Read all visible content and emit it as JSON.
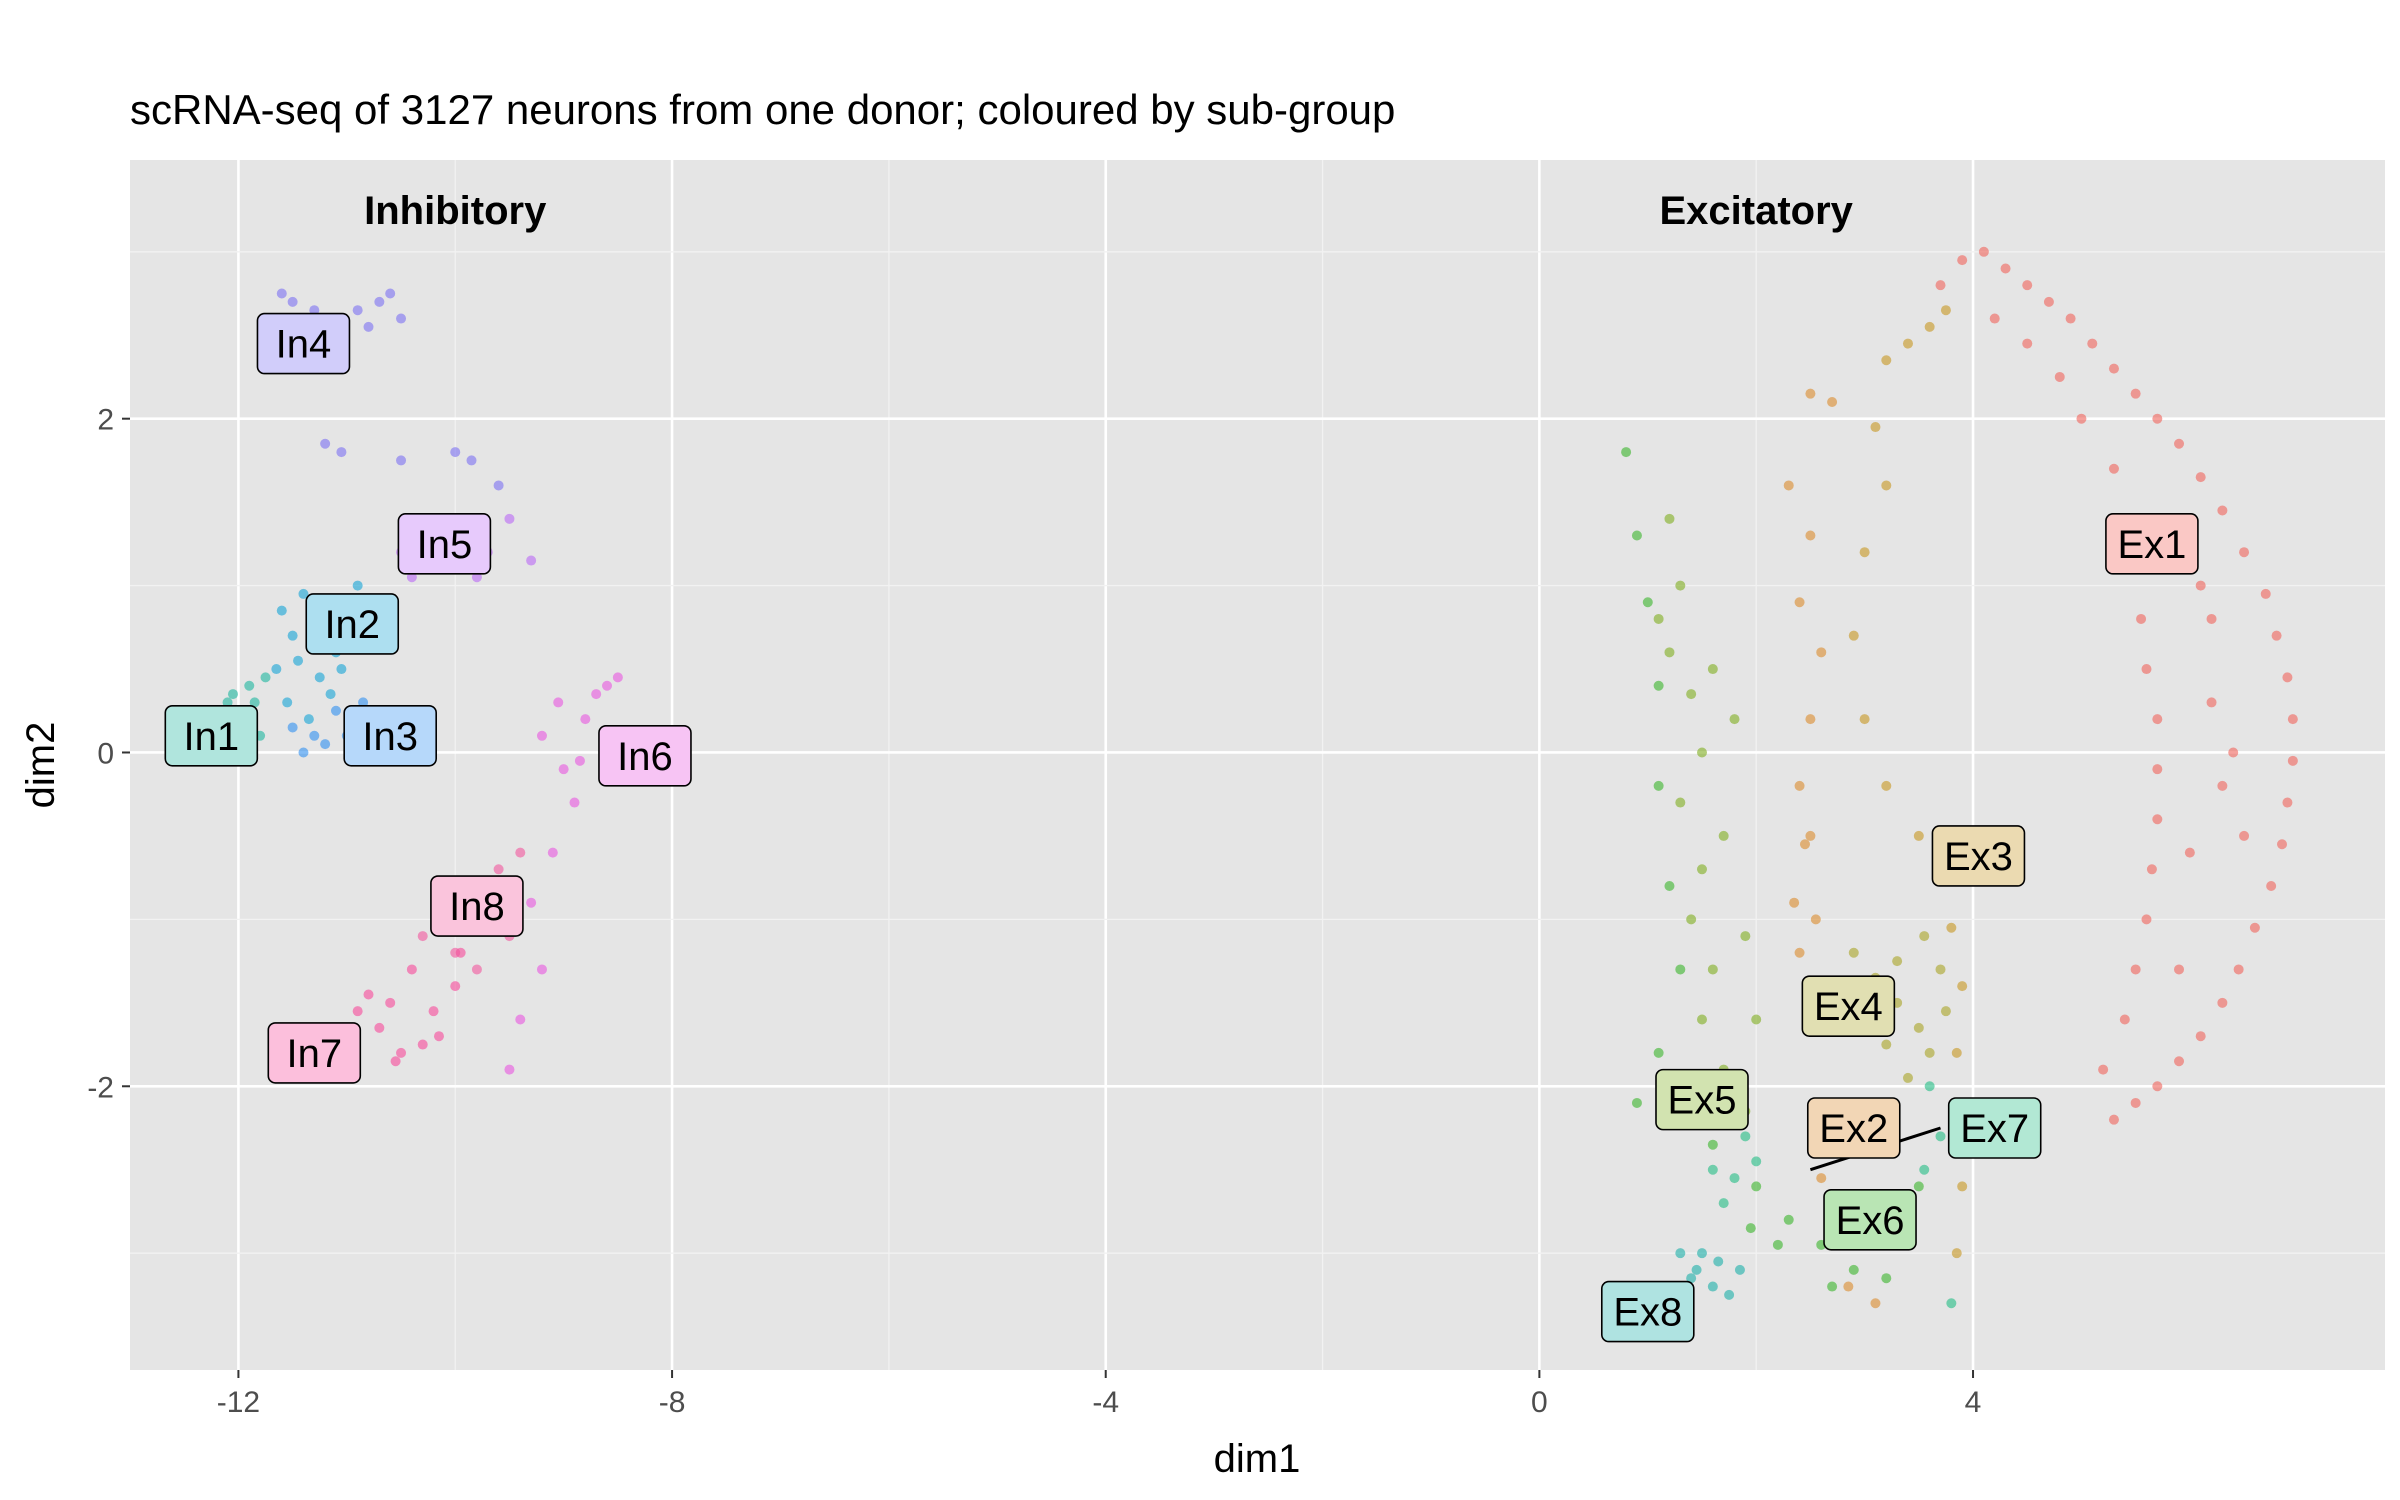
{
  "chart_data": {
    "type": "scatter",
    "title": "scRNA-seq of 3127 neurons from one donor; coloured by sub-group",
    "xlabel": "dim1",
    "ylabel": "dim2",
    "xlim": [
      -13,
      7.8
    ],
    "ylim": [
      -3.7,
      3.55
    ],
    "xticks": [
      -12,
      -8,
      -4,
      0,
      4
    ],
    "xtick_labels": [
      "-12",
      "-8",
      "-4",
      "0",
      "4"
    ],
    "yticks": [
      -2,
      0,
      2
    ],
    "ytick_labels": [
      "-2",
      "0",
      "2"
    ],
    "annotations": [
      {
        "text": "Inhibitory",
        "x": -10,
        "y": 3.25
      },
      {
        "text": "Excitatory",
        "x": 2,
        "y": 3.25
      }
    ],
    "grid": true,
    "legend": "none",
    "series": [
      {
        "name": "In1",
        "color": "#1CB59F",
        "points": [
          [
            -12.15,
            0.25
          ],
          [
            -12.05,
            0.35
          ],
          [
            -11.95,
            0.15
          ],
          [
            -11.9,
            0.4
          ],
          [
            -11.85,
            0.3
          ],
          [
            -11.8,
            0.1
          ],
          [
            -12.0,
            0.05
          ],
          [
            -11.75,
            0.45
          ],
          [
            -11.9,
            0.2
          ],
          [
            -12.1,
            0.3
          ]
        ]
      },
      {
        "name": "In2",
        "color": "#14A4D5",
        "points": [
          [
            -11.6,
            0.85
          ],
          [
            -11.5,
            0.7
          ],
          [
            -11.4,
            0.95
          ],
          [
            -11.3,
            0.75
          ],
          [
            -11.2,
            0.9
          ],
          [
            -11.1,
            0.6
          ],
          [
            -11.0,
            0.8
          ],
          [
            -10.9,
            1.0
          ],
          [
            -11.45,
            0.55
          ],
          [
            -11.25,
            0.45
          ],
          [
            -11.55,
            0.3
          ],
          [
            -11.15,
            0.35
          ],
          [
            -11.35,
            0.2
          ],
          [
            -11.05,
            0.5
          ],
          [
            -10.8,
            0.65
          ],
          [
            -11.65,
            0.5
          ]
        ]
      },
      {
        "name": "In3",
        "color": "#2F90F0",
        "points": [
          [
            -11.3,
            0.1
          ],
          [
            -11.1,
            0.25
          ],
          [
            -11.2,
            0.05
          ],
          [
            -10.95,
            0.2
          ],
          [
            -11.4,
            0.0
          ],
          [
            -11.0,
            0.1
          ],
          [
            -10.85,
            0.3
          ],
          [
            -11.5,
            0.15
          ]
        ]
      },
      {
        "name": "In4",
        "color": "#7B6FF2",
        "points": [
          [
            -11.5,
            2.7
          ],
          [
            -11.3,
            2.65
          ],
          [
            -11.1,
            2.6
          ],
          [
            -10.9,
            2.65
          ],
          [
            -10.7,
            2.7
          ],
          [
            -10.5,
            2.6
          ],
          [
            -11.4,
            2.55
          ],
          [
            -10.8,
            2.55
          ],
          [
            -11.2,
            1.85
          ],
          [
            -11.05,
            1.8
          ],
          [
            -10.5,
            1.75
          ],
          [
            -10.0,
            1.8
          ],
          [
            -9.85,
            1.75
          ],
          [
            -9.6,
            1.6
          ],
          [
            -11.6,
            2.75
          ],
          [
            -10.6,
            2.75
          ]
        ]
      },
      {
        "name": "In5",
        "color": "#B968F5",
        "points": [
          [
            -10.5,
            1.2
          ],
          [
            -10.35,
            1.3
          ],
          [
            -10.2,
            1.15
          ],
          [
            -10.05,
            1.25
          ],
          [
            -9.9,
            1.35
          ],
          [
            -9.7,
            1.2
          ],
          [
            -9.5,
            1.4
          ],
          [
            -9.3,
            1.15
          ],
          [
            -10.4,
            1.05
          ],
          [
            -9.8,
            1.05
          ]
        ]
      },
      {
        "name": "In6",
        "color": "#E755E0",
        "points": [
          [
            -9.2,
            0.1
          ],
          [
            -9.0,
            -0.1
          ],
          [
            -8.8,
            0.2
          ],
          [
            -8.7,
            0.35
          ],
          [
            -8.5,
            0.45
          ],
          [
            -8.9,
            -0.3
          ],
          [
            -9.1,
            -0.6
          ],
          [
            -9.3,
            -0.9
          ],
          [
            -9.2,
            -1.3
          ],
          [
            -9.4,
            -1.6
          ],
          [
            -9.5,
            -1.9
          ],
          [
            -8.85,
            -0.05
          ],
          [
            -9.05,
            0.3
          ],
          [
            -8.6,
            0.4
          ]
        ]
      },
      {
        "name": "In7",
        "color": "#F7479A",
        "points": [
          [
            -10.9,
            -1.55
          ],
          [
            -10.7,
            -1.65
          ],
          [
            -10.5,
            -1.8
          ],
          [
            -10.3,
            -1.75
          ],
          [
            -10.6,
            -1.5
          ],
          [
            -10.2,
            -1.55
          ],
          [
            -10.0,
            -1.4
          ],
          [
            -10.4,
            -1.3
          ],
          [
            -10.8,
            -1.45
          ],
          [
            -10.55,
            -1.85
          ],
          [
            -10.15,
            -1.7
          ],
          [
            -9.95,
            -1.2
          ]
        ]
      },
      {
        "name": "In8",
        "color": "#F2559C",
        "points": [
          [
            -10.3,
            -1.1
          ],
          [
            -10.1,
            -0.9
          ],
          [
            -9.9,
            -0.95
          ],
          [
            -9.7,
            -1.0
          ],
          [
            -9.5,
            -1.1
          ],
          [
            -9.8,
            -1.3
          ],
          [
            -10.0,
            -1.2
          ],
          [
            -9.6,
            -0.7
          ],
          [
            -9.4,
            -0.6
          ],
          [
            -9.75,
            -0.85
          ]
        ]
      },
      {
        "name": "Ex1",
        "color": "#F0625A",
        "points": [
          [
            3.7,
            2.8
          ],
          [
            3.9,
            2.95
          ],
          [
            4.1,
            3.0
          ],
          [
            4.3,
            2.9
          ],
          [
            4.5,
            2.8
          ],
          [
            4.7,
            2.7
          ],
          [
            4.9,
            2.6
          ],
          [
            5.1,
            2.45
          ],
          [
            5.3,
            2.3
          ],
          [
            5.5,
            2.15
          ],
          [
            5.7,
            2.0
          ],
          [
            5.9,
            1.85
          ],
          [
            6.1,
            1.65
          ],
          [
            6.3,
            1.45
          ],
          [
            6.5,
            1.2
          ],
          [
            6.7,
            0.95
          ],
          [
            6.8,
            0.7
          ],
          [
            6.9,
            0.45
          ],
          [
            6.95,
            0.2
          ],
          [
            6.95,
            -0.05
          ],
          [
            6.9,
            -0.3
          ],
          [
            6.85,
            -0.55
          ],
          [
            6.75,
            -0.8
          ],
          [
            6.6,
            -1.05
          ],
          [
            6.45,
            -1.3
          ],
          [
            6.3,
            -1.5
          ],
          [
            6.1,
            -1.7
          ],
          [
            5.9,
            -1.85
          ],
          [
            5.7,
            -2.0
          ],
          [
            5.5,
            -2.1
          ],
          [
            5.3,
            -2.2
          ],
          [
            5.2,
            -1.9
          ],
          [
            5.4,
            -1.6
          ],
          [
            5.5,
            -1.3
          ],
          [
            5.6,
            -1.0
          ],
          [
            5.65,
            -0.7
          ],
          [
            5.7,
            -0.4
          ],
          [
            5.7,
            -0.1
          ],
          [
            5.7,
            0.2
          ],
          [
            5.6,
            0.5
          ],
          [
            5.55,
            0.8
          ],
          [
            5.5,
            1.1
          ],
          [
            5.4,
            1.4
          ],
          [
            5.3,
            1.7
          ],
          [
            5.0,
            2.0
          ],
          [
            4.8,
            2.25
          ],
          [
            4.5,
            2.45
          ],
          [
            4.2,
            2.6
          ],
          [
            6.2,
            0.3
          ],
          [
            6.3,
            -0.2
          ],
          [
            6.0,
            -0.6
          ],
          [
            6.2,
            0.8
          ],
          [
            6.4,
            0.0
          ],
          [
            6.1,
            1.0
          ],
          [
            5.9,
            -1.3
          ],
          [
            6.5,
            -0.5
          ]
        ]
      },
      {
        "name": "Ex2",
        "color": "#DA8A2B",
        "points": [
          [
            2.5,
            2.15
          ],
          [
            2.7,
            2.1
          ],
          [
            2.3,
            1.6
          ],
          [
            2.5,
            1.3
          ],
          [
            2.4,
            0.9
          ],
          [
            2.6,
            0.6
          ],
          [
            2.5,
            0.2
          ],
          [
            2.4,
            -0.2
          ],
          [
            2.45,
            -0.55
          ],
          [
            2.35,
            -0.9
          ],
          [
            2.4,
            -1.2
          ],
          [
            2.55,
            -1.0
          ],
          [
            2.5,
            -0.5
          ],
          [
            2.6,
            -2.55
          ],
          [
            2.8,
            -2.7
          ],
          [
            3.0,
            -2.85
          ],
          [
            2.85,
            -3.2
          ],
          [
            3.1,
            -3.3
          ],
          [
            2.6,
            -2.3
          ]
        ]
      },
      {
        "name": "Ex3",
        "color": "#C6961F",
        "points": [
          [
            3.2,
            2.35
          ],
          [
            3.4,
            2.45
          ],
          [
            3.6,
            2.55
          ],
          [
            3.75,
            2.65
          ],
          [
            3.1,
            1.95
          ],
          [
            3.2,
            1.6
          ],
          [
            3.0,
            1.2
          ],
          [
            2.9,
            0.7
          ],
          [
            3.0,
            0.2
          ],
          [
            3.2,
            -0.2
          ],
          [
            3.5,
            -0.5
          ],
          [
            3.7,
            -0.75
          ],
          [
            3.8,
            -1.05
          ],
          [
            3.9,
            -1.4
          ],
          [
            3.85,
            -1.8
          ],
          [
            3.95,
            -2.2
          ],
          [
            3.9,
            -2.6
          ],
          [
            3.85,
            -3.0
          ]
        ]
      },
      {
        "name": "Ex4",
        "color": "#A9A324",
        "points": [
          [
            2.9,
            -1.2
          ],
          [
            3.1,
            -1.35
          ],
          [
            3.3,
            -1.5
          ],
          [
            3.5,
            -1.65
          ],
          [
            3.7,
            -1.3
          ],
          [
            3.6,
            -1.8
          ],
          [
            3.4,
            -1.95
          ],
          [
            3.2,
            -1.75
          ],
          [
            3.0,
            -1.55
          ],
          [
            3.75,
            -1.55
          ],
          [
            3.55,
            -1.1
          ],
          [
            3.3,
            -1.25
          ]
        ]
      },
      {
        "name": "Ex5",
        "color": "#7EAE1E",
        "points": [
          [
            1.2,
            1.4
          ],
          [
            1.3,
            1.0
          ],
          [
            1.2,
            0.6
          ],
          [
            1.4,
            0.35
          ],
          [
            1.5,
            0.0
          ],
          [
            1.3,
            -0.3
          ],
          [
            1.5,
            -0.7
          ],
          [
            1.4,
            -1.0
          ],
          [
            1.6,
            -1.3
          ],
          [
            1.5,
            -1.6
          ],
          [
            1.7,
            -1.9
          ],
          [
            1.9,
            -2.15
          ],
          [
            1.1,
            0.8
          ],
          [
            1.6,
            0.5
          ],
          [
            1.8,
            0.2
          ],
          [
            1.7,
            -0.5
          ],
          [
            1.9,
            -1.1
          ],
          [
            2.0,
            -1.6
          ]
        ]
      },
      {
        "name": "Ex6",
        "color": "#38B42A",
        "points": [
          [
            0.8,
            1.8
          ],
          [
            0.9,
            1.3
          ],
          [
            1.0,
            0.9
          ],
          [
            1.1,
            0.4
          ],
          [
            1.1,
            -0.2
          ],
          [
            1.2,
            -0.8
          ],
          [
            1.3,
            -1.3
          ],
          [
            1.1,
            -1.8
          ],
          [
            0.9,
            -2.1
          ],
          [
            1.3,
            -2.2
          ],
          [
            1.6,
            -2.35
          ],
          [
            2.0,
            -2.6
          ],
          [
            2.3,
            -2.8
          ],
          [
            2.6,
            -2.95
          ],
          [
            2.9,
            -3.1
          ],
          [
            3.2,
            -3.15
          ],
          [
            3.4,
            -2.9
          ],
          [
            3.5,
            -2.6
          ],
          [
            2.2,
            -2.95
          ],
          [
            1.95,
            -2.85
          ],
          [
            2.7,
            -3.2
          ]
        ]
      },
      {
        "name": "Ex7",
        "color": "#22BD83",
        "points": [
          [
            1.6,
            -2.5
          ],
          [
            1.8,
            -2.55
          ],
          [
            2.0,
            -2.45
          ],
          [
            1.7,
            -2.7
          ],
          [
            3.6,
            -2.0
          ],
          [
            3.7,
            -2.3
          ],
          [
            3.55,
            -2.5
          ],
          [
            3.8,
            -3.3
          ],
          [
            1.9,
            -2.3
          ]
        ]
      },
      {
        "name": "Ex8",
        "color": "#1AAFA8",
        "points": [
          [
            1.3,
            -3.0
          ],
          [
            1.45,
            -3.1
          ],
          [
            1.6,
            -3.2
          ],
          [
            1.75,
            -3.25
          ],
          [
            1.85,
            -3.1
          ],
          [
            1.5,
            -3.0
          ],
          [
            1.65,
            -3.05
          ],
          [
            1.4,
            -3.15
          ]
        ]
      }
    ],
    "labels": [
      {
        "text": "In1",
        "x": -12.25,
        "y": 0.1,
        "color": "#1CB59F"
      },
      {
        "text": "In2",
        "x": -10.95,
        "y": 0.77,
        "color": "#14A4D5"
      },
      {
        "text": "In3",
        "x": -10.6,
        "y": 0.1,
        "color": "#2F90F0"
      },
      {
        "text": "In4",
        "x": -11.4,
        "y": 2.45,
        "color": "#7B6FF2"
      },
      {
        "text": "In5",
        "x": -10.1,
        "y": 1.25,
        "color": "#B968F5"
      },
      {
        "text": "In6",
        "x": -8.25,
        "y": -0.02,
        "color": "#E755E0"
      },
      {
        "text": "In7",
        "x": -11.3,
        "y": -1.8,
        "color": "#F7479A"
      },
      {
        "text": "In8",
        "x": -9.8,
        "y": -0.92,
        "color": "#F2559C"
      },
      {
        "text": "Ex1",
        "x": 5.65,
        "y": 1.25,
        "color": "#F0625A"
      },
      {
        "text": "Ex2",
        "x": 2.9,
        "y": -2.25,
        "color": "#DA8A2B"
      },
      {
        "text": "Ex3",
        "x": 4.05,
        "y": -0.62,
        "color": "#C6961F"
      },
      {
        "text": "Ex4",
        "x": 2.85,
        "y": -1.52,
        "color": "#A9A324"
      },
      {
        "text": "Ex5",
        "x": 1.5,
        "y": -2.08,
        "color": "#7EAE1E"
      },
      {
        "text": "Ex6",
        "x": 3.05,
        "y": -2.8,
        "color": "#38B42A"
      },
      {
        "text": "Ex7",
        "x": 4.2,
        "y": -2.25,
        "color": "#22BD83"
      },
      {
        "text": "Ex8",
        "x": 1.0,
        "y": -3.35,
        "color": "#1AAFA8"
      }
    ],
    "connector": {
      "label": "Ex7",
      "from": [
        3.7,
        -2.25
      ],
      "to": [
        2.5,
        -2.5
      ]
    }
  }
}
